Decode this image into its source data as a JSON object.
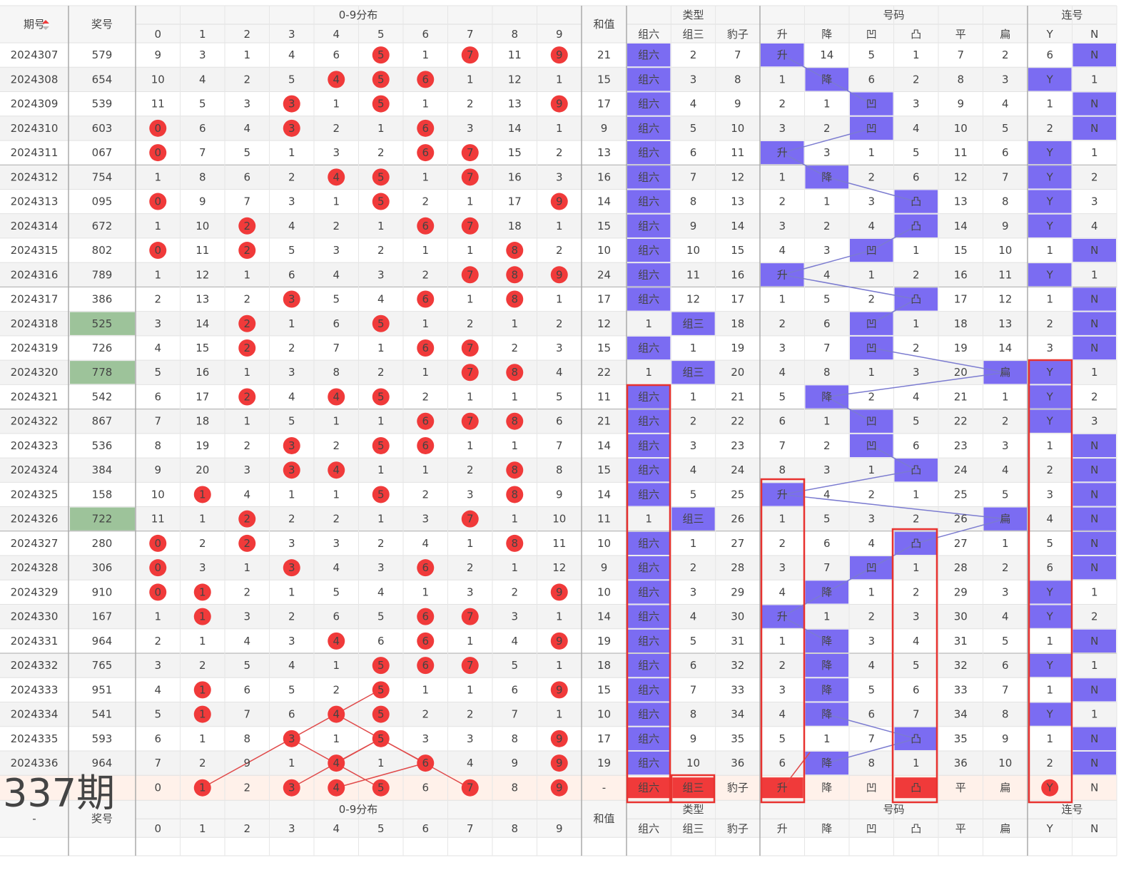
{
  "header": {
    "period": "期号",
    "prize": "奖号",
    "dist": "0-9分布",
    "sum": "和值",
    "type": "类型",
    "code": "号码",
    "consec": "连号",
    "columns": [
      "0",
      "1",
      "2",
      "3",
      "4",
      "5",
      "6",
      "7",
      "8",
      "9",
      "组六",
      "组三",
      "豹子",
      "升",
      "降",
      "凹",
      "凸",
      "平",
      "扁",
      "Y",
      "N"
    ]
  },
  "rows": [
    [
      "2024307",
      "579",
      "9",
      "3",
      "1",
      "4",
      "6",
      "5",
      "1",
      "7",
      "11",
      "9",
      "21",
      "组六",
      "2",
      "7",
      "升",
      "14",
      "5",
      "1",
      "7",
      "2",
      "6",
      "N"
    ],
    [
      "2024308",
      "654",
      "10",
      "4",
      "2",
      "5",
      "4",
      "5",
      "6",
      "1",
      "12",
      "1",
      "15",
      "组六",
      "3",
      "8",
      "1",
      "降",
      "6",
      "2",
      "8",
      "3",
      "Y",
      "1"
    ],
    [
      "2024309",
      "539",
      "11",
      "5",
      "3",
      "3",
      "1",
      "5",
      "1",
      "2",
      "13",
      "9",
      "17",
      "组六",
      "4",
      "9",
      "2",
      "1",
      "凹",
      "3",
      "9",
      "4",
      "1",
      "N"
    ],
    [
      "2024310",
      "603",
      "0",
      "6",
      "4",
      "3",
      "2",
      "1",
      "6",
      "3",
      "14",
      "1",
      "9",
      "组六",
      "5",
      "10",
      "3",
      "2",
      "凹",
      "4",
      "10",
      "5",
      "2",
      "N"
    ],
    [
      "2024311",
      "067",
      "0",
      "7",
      "5",
      "1",
      "3",
      "2",
      "6",
      "7",
      "15",
      "2",
      "13",
      "组六",
      "6",
      "11",
      "升",
      "3",
      "1",
      "5",
      "11",
      "6",
      "Y",
      "1"
    ],
    [
      "2024312",
      "754",
      "1",
      "8",
      "6",
      "2",
      "4",
      "5",
      "1",
      "7",
      "16",
      "3",
      "16",
      "组六",
      "7",
      "12",
      "1",
      "降",
      "2",
      "6",
      "12",
      "7",
      "Y",
      "2"
    ],
    [
      "2024313",
      "095",
      "0",
      "9",
      "7",
      "3",
      "1",
      "5",
      "2",
      "1",
      "17",
      "9",
      "14",
      "组六",
      "8",
      "13",
      "2",
      "1",
      "3",
      "凸",
      "13",
      "8",
      "Y",
      "3"
    ],
    [
      "2024314",
      "672",
      "1",
      "10",
      "2",
      "4",
      "2",
      "1",
      "6",
      "7",
      "18",
      "1",
      "15",
      "组六",
      "9",
      "14",
      "3",
      "2",
      "4",
      "凸",
      "14",
      "9",
      "Y",
      "4"
    ],
    [
      "2024315",
      "802",
      "0",
      "11",
      "2",
      "5",
      "3",
      "2",
      "1",
      "1",
      "8",
      "2",
      "10",
      "组六",
      "10",
      "15",
      "4",
      "3",
      "凹",
      "1",
      "15",
      "10",
      "1",
      "N"
    ],
    [
      "2024316",
      "789",
      "1",
      "12",
      "1",
      "6",
      "4",
      "3",
      "2",
      "7",
      "8",
      "9",
      "24",
      "组六",
      "11",
      "16",
      "升",
      "4",
      "1",
      "2",
      "16",
      "11",
      "Y",
      "1"
    ],
    [
      "2024317",
      "386",
      "2",
      "13",
      "2",
      "3",
      "5",
      "4",
      "6",
      "1",
      "8",
      "1",
      "17",
      "组六",
      "12",
      "17",
      "1",
      "5",
      "2",
      "凸",
      "17",
      "12",
      "1",
      "N"
    ],
    [
      "2024318",
      "525",
      "3",
      "14",
      "2",
      "1",
      "6",
      "5",
      "1",
      "2",
      "1",
      "2",
      "12",
      "1",
      "组三",
      "18",
      "2",
      "6",
      "凹",
      "1",
      "18",
      "13",
      "2",
      "N"
    ],
    [
      "2024319",
      "726",
      "4",
      "15",
      "2",
      "2",
      "7",
      "1",
      "6",
      "7",
      "2",
      "3",
      "15",
      "组六",
      "1",
      "19",
      "3",
      "7",
      "凹",
      "2",
      "19",
      "14",
      "3",
      "N"
    ],
    [
      "2024320",
      "778",
      "5",
      "16",
      "1",
      "3",
      "8",
      "2",
      "1",
      "7",
      "8",
      "4",
      "22",
      "1",
      "组三",
      "20",
      "4",
      "8",
      "1",
      "3",
      "20",
      "扁",
      "Y",
      "1"
    ],
    [
      "2024321",
      "542",
      "6",
      "17",
      "2",
      "4",
      "4",
      "5",
      "2",
      "1",
      "1",
      "5",
      "11",
      "组六",
      "1",
      "21",
      "5",
      "降",
      "2",
      "4",
      "21",
      "1",
      "Y",
      "2"
    ],
    [
      "2024322",
      "867",
      "7",
      "18",
      "1",
      "5",
      "1",
      "1",
      "6",
      "7",
      "8",
      "6",
      "21",
      "组六",
      "2",
      "22",
      "6",
      "1",
      "凹",
      "5",
      "22",
      "2",
      "Y",
      "3"
    ],
    [
      "2024323",
      "536",
      "8",
      "19",
      "2",
      "3",
      "2",
      "5",
      "6",
      "1",
      "1",
      "7",
      "14",
      "组六",
      "3",
      "23",
      "7",
      "2",
      "凹",
      "6",
      "23",
      "3",
      "1",
      "N"
    ],
    [
      "2024324",
      "384",
      "9",
      "20",
      "3",
      "3",
      "4",
      "1",
      "1",
      "2",
      "8",
      "8",
      "15",
      "组六",
      "4",
      "24",
      "8",
      "3",
      "1",
      "凸",
      "24",
      "4",
      "2",
      "N"
    ],
    [
      "2024325",
      "158",
      "10",
      "1",
      "4",
      "1",
      "1",
      "5",
      "2",
      "3",
      "8",
      "9",
      "14",
      "组六",
      "5",
      "25",
      "升",
      "4",
      "2",
      "1",
      "25",
      "5",
      "3",
      "N"
    ],
    [
      "2024326",
      "722",
      "11",
      "1",
      "2",
      "2",
      "2",
      "1",
      "3",
      "7",
      "1",
      "10",
      "11",
      "1",
      "组三",
      "26",
      "1",
      "5",
      "3",
      "2",
      "26",
      "扁",
      "4",
      "N"
    ],
    [
      "2024327",
      "280",
      "0",
      "2",
      "2",
      "3",
      "3",
      "2",
      "4",
      "1",
      "8",
      "11",
      "10",
      "组六",
      "1",
      "27",
      "2",
      "6",
      "4",
      "凸",
      "27",
      "1",
      "5",
      "N"
    ],
    [
      "2024328",
      "306",
      "0",
      "3",
      "1",
      "3",
      "4",
      "3",
      "6",
      "2",
      "1",
      "12",
      "9",
      "组六",
      "2",
      "28",
      "3",
      "7",
      "凹",
      "1",
      "28",
      "2",
      "6",
      "N"
    ],
    [
      "2024329",
      "910",
      "0",
      "1",
      "2",
      "1",
      "5",
      "4",
      "1",
      "3",
      "2",
      "9",
      "10",
      "组六",
      "3",
      "29",
      "4",
      "降",
      "1",
      "2",
      "29",
      "3",
      "Y",
      "1"
    ],
    [
      "2024330",
      "167",
      "1",
      "1",
      "3",
      "2",
      "6",
      "5",
      "6",
      "7",
      "3",
      "1",
      "14",
      "组六",
      "4",
      "30",
      "升",
      "1",
      "2",
      "3",
      "30",
      "4",
      "Y",
      "2"
    ],
    [
      "2024331",
      "964",
      "2",
      "1",
      "4",
      "3",
      "4",
      "6",
      "6",
      "1",
      "4",
      "9",
      "19",
      "组六",
      "5",
      "31",
      "1",
      "降",
      "3",
      "4",
      "31",
      "5",
      "1",
      "N"
    ],
    [
      "2024332",
      "765",
      "3",
      "2",
      "5",
      "4",
      "1",
      "5",
      "6",
      "7",
      "5",
      "1",
      "18",
      "组六",
      "6",
      "32",
      "2",
      "降",
      "4",
      "5",
      "32",
      "6",
      "Y",
      "1"
    ],
    [
      "2024333",
      "951",
      "4",
      "1",
      "6",
      "5",
      "2",
      "5",
      "1",
      "1",
      "6",
      "9",
      "15",
      "组六",
      "7",
      "33",
      "3",
      "降",
      "5",
      "6",
      "33",
      "7",
      "1",
      "N"
    ],
    [
      "2024334",
      "541",
      "5",
      "1",
      "7",
      "6",
      "4",
      "5",
      "2",
      "2",
      "7",
      "1",
      "10",
      "组六",
      "8",
      "34",
      "4",
      "降",
      "6",
      "7",
      "34",
      "8",
      "Y",
      "1"
    ],
    [
      "2024335",
      "593",
      "6",
      "1",
      "8",
      "3",
      "1",
      "5",
      "3",
      "3",
      "8",
      "9",
      "17",
      "组六",
      "9",
      "35",
      "5",
      "1",
      "7",
      "凸",
      "35",
      "9",
      "1",
      "N"
    ],
    [
      "2024336",
      "964",
      "7",
      "2",
      "9",
      "1",
      "4",
      "1",
      "6",
      "4",
      "9",
      "9",
      "19",
      "组六",
      "10",
      "36",
      "6",
      "降",
      "8",
      "1",
      "36",
      "10",
      "2",
      "N"
    ]
  ],
  "prediction": {
    "overlay": "337期",
    "cells": [
      "0",
      "1",
      "2",
      "3",
      "4",
      "5",
      "6",
      "7",
      "8",
      "9",
      "-",
      "组六",
      "组三",
      "豹子",
      "升",
      "降",
      "凹",
      "凸",
      "平",
      "扁",
      "Y",
      "N"
    ],
    "picked": [
      false,
      true,
      false,
      true,
      true,
      true,
      false,
      true,
      false,
      true,
      false,
      true,
      true,
      false,
      true,
      false,
      false,
      true,
      false,
      false,
      true,
      false
    ]
  },
  "footer": {
    "period": "-",
    "prize": "奖号",
    "dist": "0-9分布",
    "sum": "和值",
    "type": "类型",
    "code": "号码",
    "consec": "连号",
    "columns": [
      "0",
      "1",
      "2",
      "3",
      "4",
      "5",
      "6",
      "7",
      "8",
      "9",
      "组六",
      "组三",
      "豹子",
      "升",
      "降",
      "凹",
      "凸",
      "平",
      "扁",
      "Y",
      "N"
    ]
  }
}
